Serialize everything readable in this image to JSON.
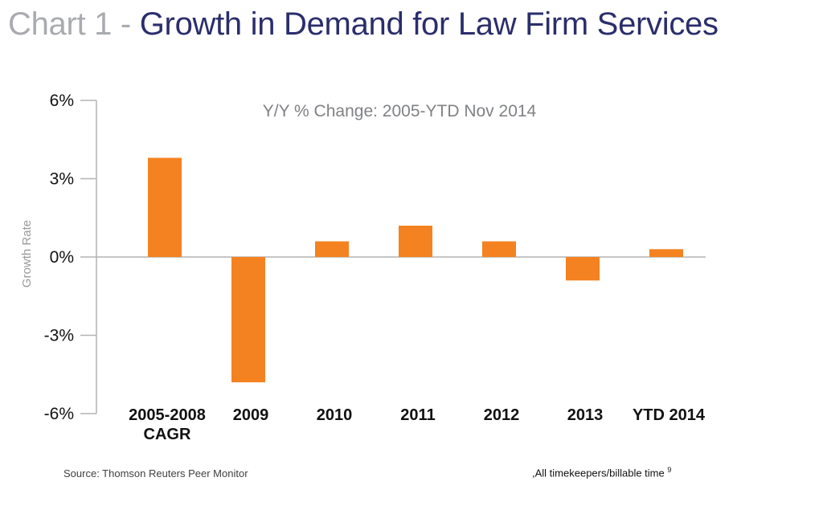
{
  "header": {
    "title_prefix": "Chart 1 - ",
    "title_main": "Growth in Demand for Law Firm Services"
  },
  "chart_data": {
    "type": "bar",
    "title": "Y/Y % Change: 2005-YTD Nov 2014",
    "xlabel": "",
    "ylabel": "Growth Rate",
    "categories": [
      "2005-2008 CAGR",
      "2009",
      "2010",
      "2011",
      "2012",
      "2013",
      "YTD 2014"
    ],
    "category_lines": [
      [
        "2005-2008",
        "CAGR"
      ],
      [
        "2009"
      ],
      [
        "2010"
      ],
      [
        "2011"
      ],
      [
        "2012"
      ],
      [
        "2013"
      ],
      [
        "YTD 2014"
      ]
    ],
    "values": [
      3.8,
      -4.8,
      0.6,
      1.2,
      0.6,
      -0.9,
      0.3
    ],
    "ylim": [
      -6,
      6
    ],
    "yticks": [
      6,
      3,
      0,
      -3,
      -6
    ],
    "ytick_labels": [
      "6%",
      "3%",
      "0%",
      "-3%",
      "-6%"
    ],
    "bar_color": "#f58220",
    "axis_color": "#b3b3b3"
  },
  "footer": {
    "source": "Source: Thomson Reuters Peer Monitor",
    "note": ",All timekeepers/billable time",
    "note_sup": "9"
  }
}
